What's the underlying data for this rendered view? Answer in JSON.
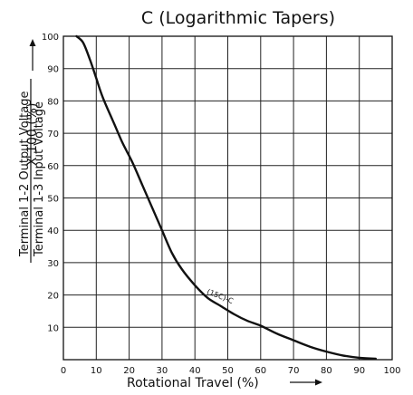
{
  "chart_data": {
    "type": "line",
    "title": "C (Logarithmic Tapers)",
    "xlabel": "Rotational Travel (%)",
    "ylabel": {
      "numerator": "Terminal 1-2 Output Voltage",
      "denominator": "Terminal 1-3 Input Voltage",
      "suffix": "X 100 (%)"
    },
    "xlim": [
      0,
      100
    ],
    "ylim": [
      0,
      100
    ],
    "xticks": [
      "0",
      "10",
      "20",
      "30",
      "40",
      "50",
      "60",
      "70",
      "80",
      "90",
      "100"
    ],
    "yticks": [
      "10",
      "20",
      "30",
      "40",
      "50",
      "60",
      "70",
      "80",
      "90",
      "100"
    ],
    "grid": true,
    "series": [
      {
        "name": "(15C)-C",
        "x": [
          4,
          6,
          8,
          10,
          12,
          15,
          18,
          21,
          24,
          27,
          30,
          33,
          36,
          40,
          44,
          48,
          52,
          56,
          60,
          65,
          70,
          75,
          80,
          85,
          90,
          95
        ],
        "y": [
          100,
          98,
          93,
          87,
          81,
          74,
          67,
          61,
          54,
          47,
          40,
          33,
          28,
          23,
          19,
          16.5,
          14,
          12,
          10.5,
          8,
          6,
          4,
          2.5,
          1.3,
          0.6,
          0.3
        ]
      }
    ]
  }
}
